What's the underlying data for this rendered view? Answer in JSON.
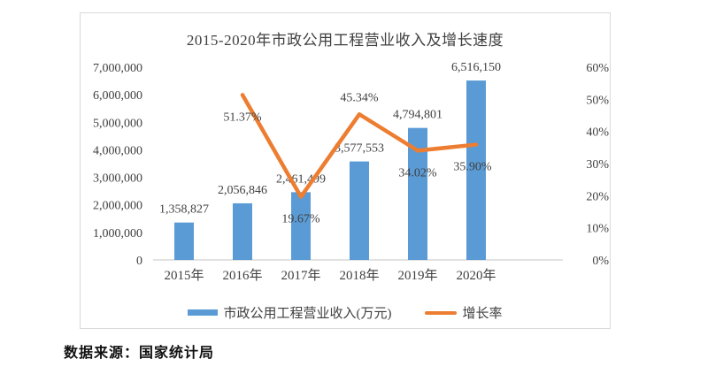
{
  "source_note": "数据来源：国家统计局",
  "chart_data": {
    "type": "combo",
    "title": "2015-2020年市政公用工程营业收入及增长速度",
    "categories": [
      "2015年",
      "2016年",
      "2017年",
      "2018年",
      "2019年",
      "2020年"
    ],
    "series": [
      {
        "name": "市政公用工程营业收入(万元)",
        "chart_type": "bar",
        "axis": "left",
        "color": "#5b9bd5",
        "values": [
          1358827,
          2056846,
          2461499,
          3577553,
          4794801,
          6516150
        ],
        "labels": [
          "1,358,827",
          "2,056,846",
          "2,461,499",
          "3,577,553",
          "4,794,801",
          "6,516,150"
        ]
      },
      {
        "name": "增长率",
        "chart_type": "line",
        "axis": "right",
        "color": "#ed7d31",
        "values": [
          null,
          51.37,
          19.67,
          45.34,
          34.02,
          35.9
        ],
        "labels": [
          null,
          "51.37%",
          "19.67%",
          "45.34%",
          "34.02%",
          "35.90%"
        ]
      }
    ],
    "axes": {
      "left": {
        "min": 0,
        "max": 7000000,
        "ticks": [
          "0",
          "1,000,000",
          "2,000,000",
          "3,000,000",
          "4,000,000",
          "5,000,000",
          "6,000,000",
          "7,000,000"
        ]
      },
      "right": {
        "min": 0,
        "max": 60,
        "ticks": [
          "0%",
          "10%",
          "20%",
          "30%",
          "40%",
          "50%",
          "60%"
        ]
      }
    },
    "legend_position": "bottom",
    "grid": false,
    "text_color": "#404040",
    "border_color": "#d9d9d9",
    "axis_line_color": "#c6c6c6"
  }
}
